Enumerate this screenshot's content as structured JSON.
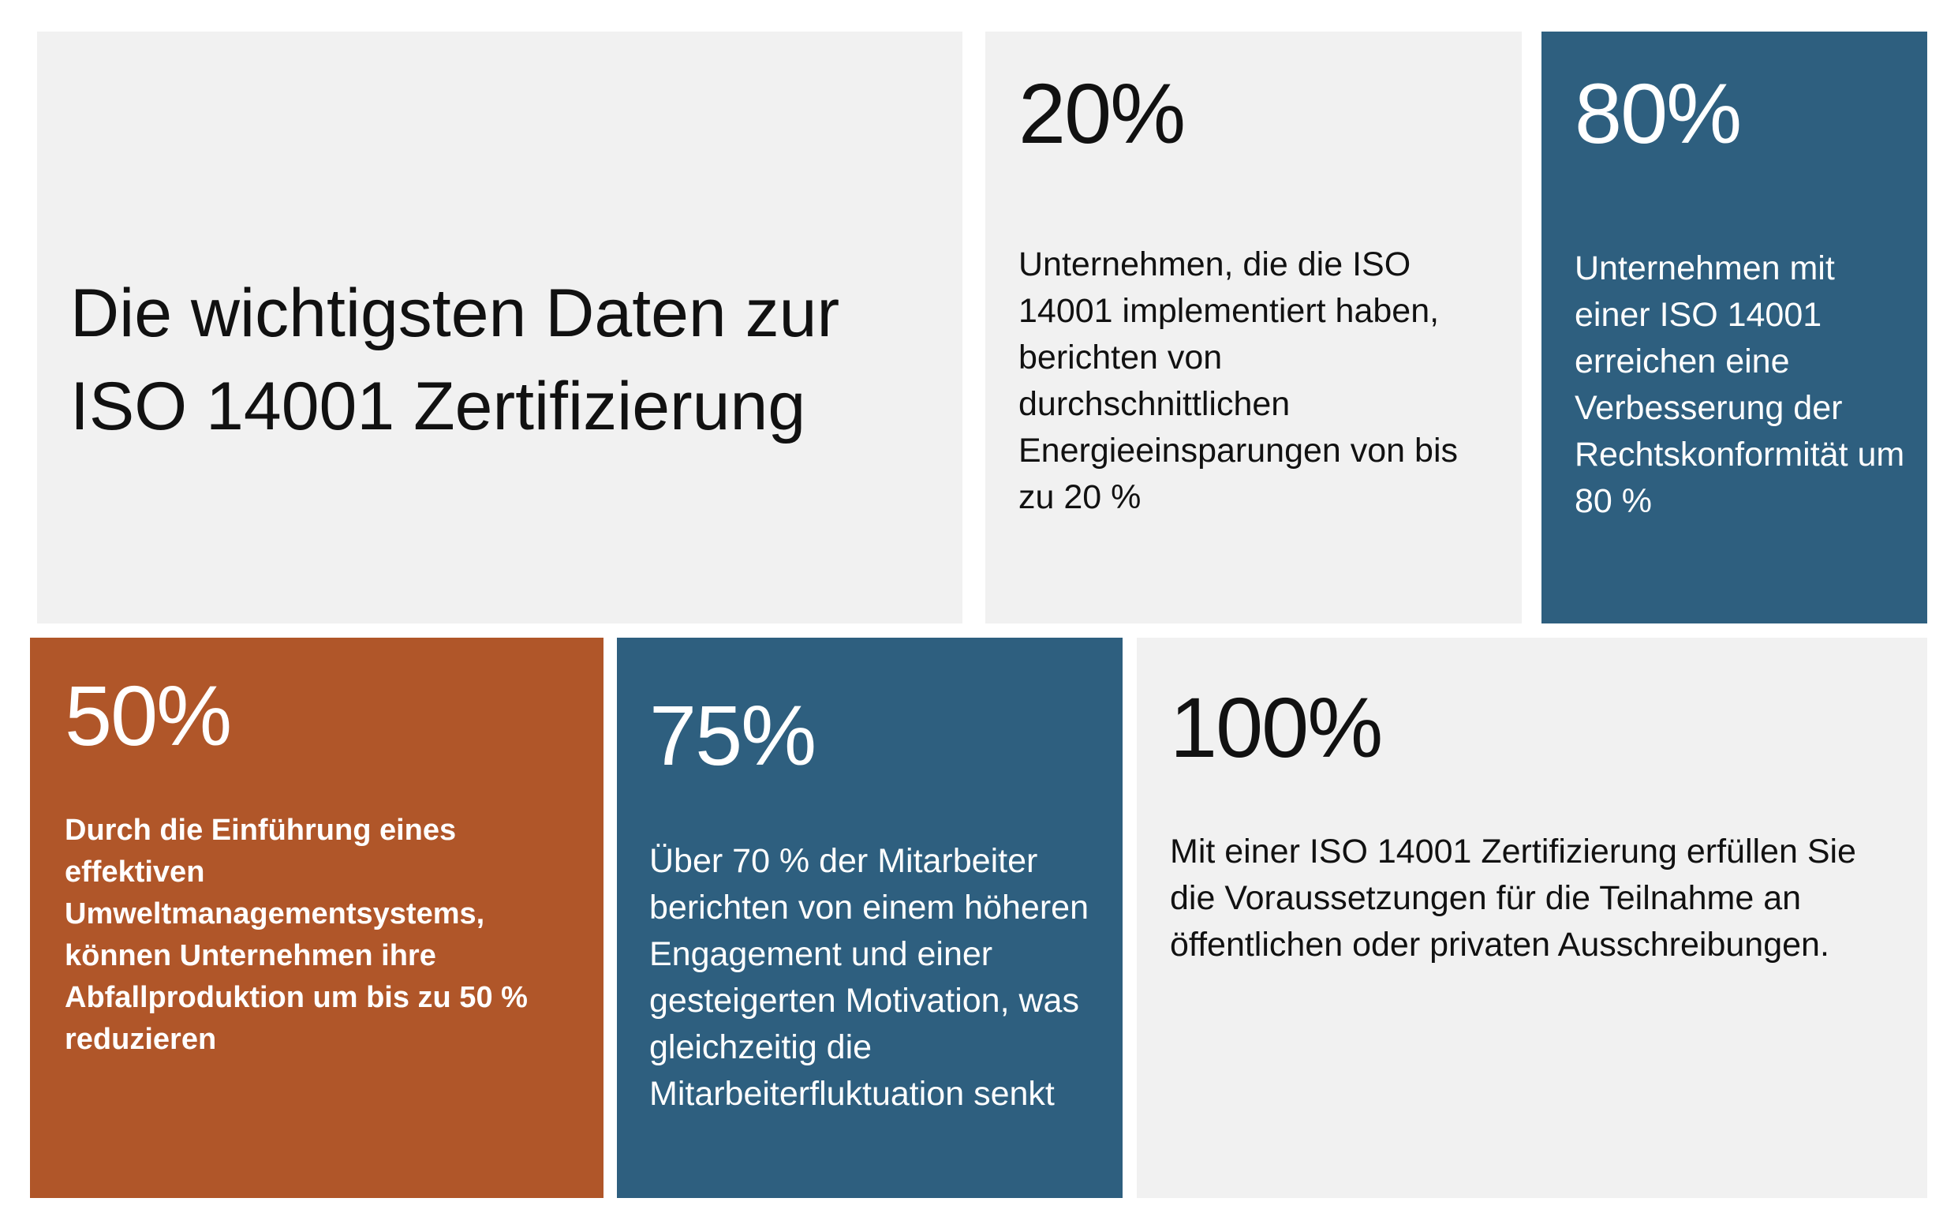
{
  "headline": {
    "line1": "Die wichtigsten Daten zur",
    "line2": "ISO 14001 Zertifizierung"
  },
  "stats": [
    {
      "value": "20%",
      "text": "Unternehmen, die die ISO 14001 implementiert haben, berichten von durchschnittlichen Energieeinsparungen von bis zu 20 %"
    },
    {
      "value": "80%",
      "text": "Unternehmen mit einer ISO 14001 erreichen eine Verbesserung der Rechtskonformität um 80 %"
    },
    {
      "value": "50%",
      "text": "Durch die Einführung eines effektiven Umweltmanagementsystems, können Unternehmen ihre Abfallproduktion um bis zu 50 % reduzieren"
    },
    {
      "value": "75%",
      "text": "Über 70 % der Mitarbeiter berichten von einem höheren Engagement und einer gesteigerten Motivation, was gleichzeitig die Mitarbeiterfluktuation senkt"
    },
    {
      "value": "100%",
      "text": "Mit einer ISO 14001 Zertifizierung erfüllen Sie die Voraussetzungen für die Teilnahme an öffentlichen oder privaten Ausschreibungen."
    }
  ],
  "colors": {
    "light_tile": "#f1f1f1",
    "blue_tile": "#2e5f7f",
    "orange_tile": "#b05629"
  }
}
